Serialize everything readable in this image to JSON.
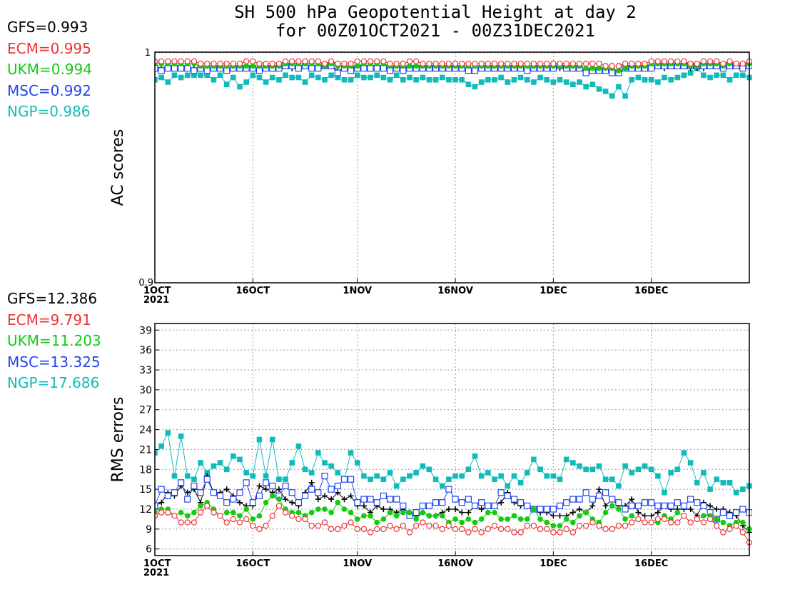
{
  "title": {
    "line1": "SH 500 hPa Geopotential Height at day 2",
    "line2": "for 00Z01OCT2021 - 00Z31DEC2021"
  },
  "colors": {
    "GFS": "#000000",
    "ECM": "#ee3333",
    "UKM": "#11cc11",
    "MSC": "#2244ee",
    "NGP": "#11bbbb"
  },
  "chart_data": [
    {
      "type": "line",
      "ylabel": "AC scores",
      "ylim": [
        0.9,
        1
      ],
      "ytick_labels": [
        "0.9",
        "1"
      ],
      "xtick_labels": [
        "1OCT\n2021",
        "16OCT",
        "1NOV",
        "16NOV",
        "1DEC",
        "16DEC"
      ],
      "xtick_days": [
        0,
        15,
        31,
        46,
        61,
        76
      ],
      "x_days_range": [
        0,
        91
      ],
      "grid": true,
      "legend_placement": "left",
      "series": [
        {
          "name": "GFS",
          "score": "GFS=0.993",
          "marker": "plus",
          "values": [
            0.994,
            0.993,
            0.994,
            0.994,
            0.994,
            0.993,
            0.993,
            0.993,
            0.992,
            0.993,
            0.994,
            0.992,
            0.993,
            0.993,
            0.993,
            0.993,
            0.993,
            0.993,
            0.993,
            0.993,
            0.994,
            0.993,
            0.993,
            0.994,
            0.994,
            0.993,
            0.994,
            0.994,
            0.992,
            0.993,
            0.993,
            0.994,
            0.994,
            0.994,
            0.994,
            0.994,
            0.993,
            0.994,
            0.993,
            0.994,
            0.993,
            0.993,
            0.993,
            0.993,
            0.993,
            0.993,
            0.993,
            0.993,
            0.993,
            0.992,
            0.993,
            0.993,
            0.993,
            0.993,
            0.993,
            0.993,
            0.993,
            0.992,
            0.993,
            0.993,
            0.993,
            0.993,
            0.993,
            0.993,
            0.993,
            0.993,
            0.992,
            0.993,
            0.992,
            0.992,
            0.992,
            0.991,
            0.993,
            0.993,
            0.993,
            0.993,
            0.994,
            0.994,
            0.993,
            0.994,
            0.994,
            0.994,
            0.993,
            0.993,
            0.993,
            0.994,
            0.994,
            0.994,
            0.994,
            0.994,
            0.994,
            0.994
          ]
        },
        {
          "name": "ECM",
          "score": "ECM=0.995",
          "marker": "open-circle",
          "values": [
            0.996,
            0.996,
            0.996,
            0.996,
            0.996,
            0.996,
            0.996,
            0.995,
            0.995,
            0.995,
            0.995,
            0.995,
            0.995,
            0.995,
            0.996,
            0.996,
            0.995,
            0.995,
            0.995,
            0.995,
            0.996,
            0.996,
            0.996,
            0.996,
            0.996,
            0.996,
            0.995,
            0.996,
            0.995,
            0.995,
            0.995,
            0.996,
            0.996,
            0.996,
            0.996,
            0.996,
            0.995,
            0.995,
            0.995,
            0.996,
            0.996,
            0.995,
            0.995,
            0.995,
            0.995,
            0.995,
            0.995,
            0.995,
            0.995,
            0.995,
            0.995,
            0.995,
            0.995,
            0.995,
            0.995,
            0.995,
            0.995,
            0.995,
            0.995,
            0.995,
            0.995,
            0.995,
            0.995,
            0.995,
            0.995,
            0.995,
            0.995,
            0.995,
            0.995,
            0.994,
            0.994,
            0.994,
            0.995,
            0.995,
            0.995,
            0.995,
            0.996,
            0.996,
            0.996,
            0.996,
            0.996,
            0.996,
            0.995,
            0.995,
            0.996,
            0.996,
            0.996,
            0.995,
            0.996,
            0.995,
            0.995,
            0.996
          ]
        },
        {
          "name": "UKM",
          "score": "UKM=0.994",
          "marker": "filled-circle",
          "values": [
            0.995,
            0.995,
            0.995,
            0.995,
            0.995,
            0.995,
            0.995,
            0.994,
            0.994,
            0.994,
            0.994,
            0.994,
            0.994,
            0.994,
            0.994,
            0.994,
            0.994,
            0.994,
            0.994,
            0.994,
            0.995,
            0.995,
            0.995,
            0.995,
            0.995,
            0.995,
            0.994,
            0.995,
            0.994,
            0.994,
            0.994,
            0.994,
            0.995,
            0.995,
            0.995,
            0.995,
            0.994,
            0.994,
            0.994,
            0.994,
            0.994,
            0.994,
            0.994,
            0.994,
            0.994,
            0.994,
            0.994,
            0.994,
            0.994,
            0.994,
            0.994,
            0.994,
            0.994,
            0.994,
            0.994,
            0.994,
            0.994,
            0.994,
            0.994,
            0.994,
            0.994,
            0.994,
            0.994,
            0.994,
            0.994,
            0.994,
            0.993,
            0.993,
            0.993,
            0.993,
            0.993,
            0.992,
            0.993,
            0.994,
            0.994,
            0.994,
            0.995,
            0.995,
            0.995,
            0.995,
            0.995,
            0.995,
            0.994,
            0.994,
            0.995,
            0.995,
            0.995,
            0.994,
            0.995,
            0.995,
            0.995,
            0.995
          ]
        },
        {
          "name": "MSC",
          "score": "MSC=0.992",
          "marker": "open-square",
          "values": [
            0.993,
            0.992,
            0.993,
            0.993,
            0.993,
            0.993,
            0.992,
            0.993,
            0.992,
            0.993,
            0.993,
            0.992,
            0.993,
            0.993,
            0.993,
            0.993,
            0.992,
            0.993,
            0.993,
            0.993,
            0.994,
            0.994,
            0.993,
            0.994,
            0.993,
            0.993,
            0.994,
            0.994,
            0.991,
            0.993,
            0.992,
            0.993,
            0.993,
            0.993,
            0.993,
            0.993,
            0.992,
            0.993,
            0.992,
            0.993,
            0.993,
            0.993,
            0.993,
            0.993,
            0.993,
            0.993,
            0.993,
            0.993,
            0.992,
            0.992,
            0.993,
            0.993,
            0.993,
            0.993,
            0.993,
            0.993,
            0.993,
            0.992,
            0.993,
            0.993,
            0.993,
            0.993,
            0.994,
            0.993,
            0.993,
            0.993,
            0.991,
            0.992,
            0.992,
            0.992,
            0.991,
            0.991,
            0.993,
            0.993,
            0.993,
            0.993,
            0.993,
            0.994,
            0.994,
            0.994,
            0.994,
            0.994,
            0.994,
            0.994,
            0.994,
            0.994,
            0.994,
            0.993,
            0.994,
            0.994,
            0.993,
            0.994
          ]
        },
        {
          "name": "NGP",
          "score": "NGP=0.986",
          "marker": "filled-square",
          "values": [
            0.988,
            0.989,
            0.987,
            0.99,
            0.989,
            0.99,
            0.99,
            0.99,
            0.99,
            0.988,
            0.99,
            0.986,
            0.989,
            0.985,
            0.987,
            0.99,
            0.989,
            0.987,
            0.989,
            0.988,
            0.99,
            0.989,
            0.989,
            0.987,
            0.99,
            0.989,
            0.988,
            0.99,
            0.989,
            0.988,
            0.988,
            0.99,
            0.989,
            0.989,
            0.99,
            0.989,
            0.988,
            0.99,
            0.988,
            0.989,
            0.988,
            0.989,
            0.988,
            0.988,
            0.989,
            0.988,
            0.988,
            0.988,
            0.986,
            0.985,
            0.987,
            0.988,
            0.988,
            0.989,
            0.987,
            0.988,
            0.989,
            0.988,
            0.987,
            0.989,
            0.988,
            0.987,
            0.988,
            0.987,
            0.986,
            0.987,
            0.985,
            0.986,
            0.984,
            0.983,
            0.981,
            0.985,
            0.981,
            0.988,
            0.989,
            0.988,
            0.988,
            0.987,
            0.989,
            0.988,
            0.989,
            0.99,
            0.991,
            0.993,
            0.99,
            0.989,
            0.99,
            0.99,
            0.988,
            0.99,
            0.99,
            0.989
          ]
        }
      ]
    },
    {
      "type": "line",
      "ylabel": "RMS errors",
      "ylim": [
        5,
        40
      ],
      "yticks": [
        6,
        9,
        12,
        15,
        18,
        21,
        24,
        27,
        30,
        33,
        36,
        39
      ],
      "xtick_labels": [
        "1OCT\n2021",
        "16OCT",
        "1NOV",
        "16NOV",
        "1DEC",
        "16DEC"
      ],
      "xtick_days": [
        0,
        15,
        31,
        46,
        61,
        76
      ],
      "x_days_range": [
        0,
        91
      ],
      "grid": true,
      "legend_placement": "left",
      "series": [
        {
          "name": "GFS",
          "score": "GFS=12.386",
          "marker": "plus",
          "values": [
            12.5,
            13.0,
            14.5,
            14.0,
            15.5,
            14.5,
            15.0,
            13.0,
            17.0,
            14.5,
            14.5,
            15.0,
            14.0,
            13.0,
            12.5,
            12.5,
            15.5,
            15.0,
            14.5,
            15.0,
            13.5,
            13.0,
            12.5,
            14.5,
            16.0,
            13.5,
            14.0,
            13.5,
            14.5,
            13.5,
            14.0,
            12.5,
            12.5,
            11.5,
            12.5,
            12.0,
            12.0,
            11.5,
            12.0,
            11.5,
            11.0,
            11.5,
            11.0,
            11.0,
            11.5,
            12.0,
            12.0,
            11.5,
            11.5,
            12.5,
            12.0,
            12.5,
            12.5,
            13.0,
            14.5,
            13.0,
            12.5,
            12.5,
            12.0,
            11.5,
            11.5,
            11.0,
            11.0,
            11.0,
            11.5,
            12.0,
            11.5,
            12.5,
            15.0,
            12.5,
            13.5,
            12.5,
            12.5,
            13.5,
            11.5,
            11.0,
            11.0,
            11.5,
            12.5,
            12.0,
            12.0,
            12.0,
            12.0,
            11.0,
            13.0,
            12.5,
            12.0,
            12.0,
            11.5,
            11.0,
            9.5,
            8.5
          ]
        },
        {
          "name": "ECM",
          "score": "ECM=9.791",
          "marker": "open-circle",
          "values": [
            11.0,
            11.5,
            11.5,
            11.0,
            10.0,
            10.0,
            10.0,
            11.5,
            12.5,
            11.5,
            11.0,
            10.0,
            10.5,
            10.0,
            10.5,
            9.5,
            9.0,
            9.5,
            11.0,
            12.5,
            11.5,
            11.0,
            10.5,
            10.5,
            9.5,
            9.5,
            10.0,
            9.0,
            9.0,
            9.5,
            10.0,
            9.0,
            9.0,
            8.5,
            9.0,
            9.0,
            9.5,
            9.0,
            9.5,
            8.5,
            9.5,
            10.0,
            9.5,
            9.5,
            9.0,
            9.5,
            9.0,
            9.0,
            8.5,
            9.0,
            8.5,
            9.0,
            9.5,
            9.0,
            9.0,
            8.5,
            8.5,
            9.5,
            9.5,
            9.0,
            9.0,
            8.5,
            8.5,
            9.0,
            8.5,
            9.5,
            9.5,
            10.0,
            9.5,
            9.0,
            9.0,
            9.5,
            9.5,
            10.0,
            10.5,
            10.0,
            10.0,
            10.5,
            10.5,
            10.0,
            10.0,
            11.0,
            10.0,
            10.5,
            10.0,
            10.5,
            9.5,
            8.5,
            9.0,
            9.5,
            8.5,
            7.0
          ]
        },
        {
          "name": "UKM",
          "score": "UKM=11.203",
          "marker": "filled-circle",
          "values": [
            11.5,
            12.0,
            12.0,
            11.0,
            11.5,
            11.0,
            11.5,
            12.5,
            13.0,
            12.0,
            11.0,
            11.5,
            11.5,
            11.0,
            12.0,
            10.5,
            11.0,
            13.0,
            14.0,
            13.5,
            12.0,
            11.5,
            11.5,
            11.0,
            11.5,
            12.0,
            12.0,
            11.5,
            13.0,
            12.0,
            11.5,
            10.5,
            11.0,
            11.0,
            10.0,
            10.5,
            11.5,
            11.0,
            11.5,
            11.5,
            10.5,
            11.5,
            11.0,
            11.0,
            11.0,
            10.0,
            10.5,
            10.0,
            10.5,
            10.0,
            10.5,
            11.5,
            11.5,
            10.5,
            10.5,
            11.0,
            10.5,
            10.5,
            12.0,
            10.5,
            10.0,
            9.5,
            9.5,
            10.5,
            10.0,
            11.0,
            11.5,
            10.5,
            10.0,
            11.5,
            12.5,
            12.0,
            10.5,
            11.0,
            10.5,
            10.0,
            10.0,
            10.0,
            11.0,
            10.5,
            11.5,
            11.0,
            10.0,
            10.5,
            11.0,
            11.0,
            10.5,
            10.0,
            9.5,
            10.0,
            10.0,
            9.0
          ]
        },
        {
          "name": "MSC",
          "score": "MSC=13.325",
          "marker": "open-square",
          "values": [
            12.5,
            15.0,
            14.0,
            14.5,
            16.0,
            13.5,
            15.5,
            14.5,
            16.5,
            14.5,
            14.0,
            13.0,
            13.5,
            14.5,
            16.0,
            13.0,
            14.0,
            16.0,
            15.5,
            14.0,
            15.5,
            14.5,
            13.0,
            14.0,
            15.0,
            14.5,
            17.0,
            15.0,
            15.5,
            16.5,
            16.5,
            13.0,
            13.5,
            13.5,
            13.0,
            14.0,
            13.5,
            13.5,
            12.5,
            11.0,
            11.5,
            12.5,
            12.5,
            13.0,
            13.0,
            15.0,
            13.5,
            13.0,
            13.5,
            12.5,
            13.0,
            12.5,
            12.5,
            14.5,
            14.0,
            13.5,
            13.0,
            12.5,
            12.0,
            12.0,
            12.0,
            12.0,
            12.5,
            13.0,
            13.5,
            13.5,
            14.5,
            13.5,
            14.0,
            14.5,
            13.5,
            13.0,
            12.0,
            12.5,
            12.5,
            13.0,
            13.0,
            12.5,
            12.5,
            12.5,
            13.0,
            12.5,
            13.5,
            13.0,
            12.5,
            11.5,
            10.5,
            11.5,
            11.0,
            11.5,
            12.0,
            11.5
          ]
        },
        {
          "name": "NGP",
          "score": "NGP=17.686",
          "marker": "filled-square",
          "values": [
            20.5,
            21.5,
            23.5,
            17.0,
            23.0,
            17.0,
            16.5,
            19.0,
            17.5,
            18.5,
            19.0,
            18.0,
            20.0,
            19.5,
            17.5,
            17.0,
            22.5,
            17.0,
            22.5,
            16.5,
            16.5,
            19.0,
            21.5,
            18.0,
            17.5,
            20.5,
            19.0,
            18.5,
            17.5,
            16.5,
            20.5,
            19.0,
            17.0,
            16.5,
            17.0,
            16.5,
            17.5,
            15.5,
            16.5,
            17.0,
            17.5,
            18.5,
            18.0,
            16.5,
            15.5,
            16.5,
            17.0,
            17.0,
            18.0,
            20.0,
            17.0,
            17.5,
            16.5,
            17.0,
            15.5,
            17.0,
            16.0,
            17.5,
            19.5,
            18.0,
            17.0,
            17.0,
            16.5,
            19.5,
            19.0,
            18.5,
            18.0,
            18.0,
            18.5,
            16.5,
            16.5,
            15.5,
            18.5,
            17.5,
            18.0,
            18.5,
            18.0,
            17.0,
            14.5,
            17.5,
            18.0,
            20.5,
            19.0,
            16.0,
            17.5,
            15.0,
            16.5,
            16.0,
            16.0,
            14.5,
            15.0,
            15.5
          ]
        }
      ]
    }
  ]
}
